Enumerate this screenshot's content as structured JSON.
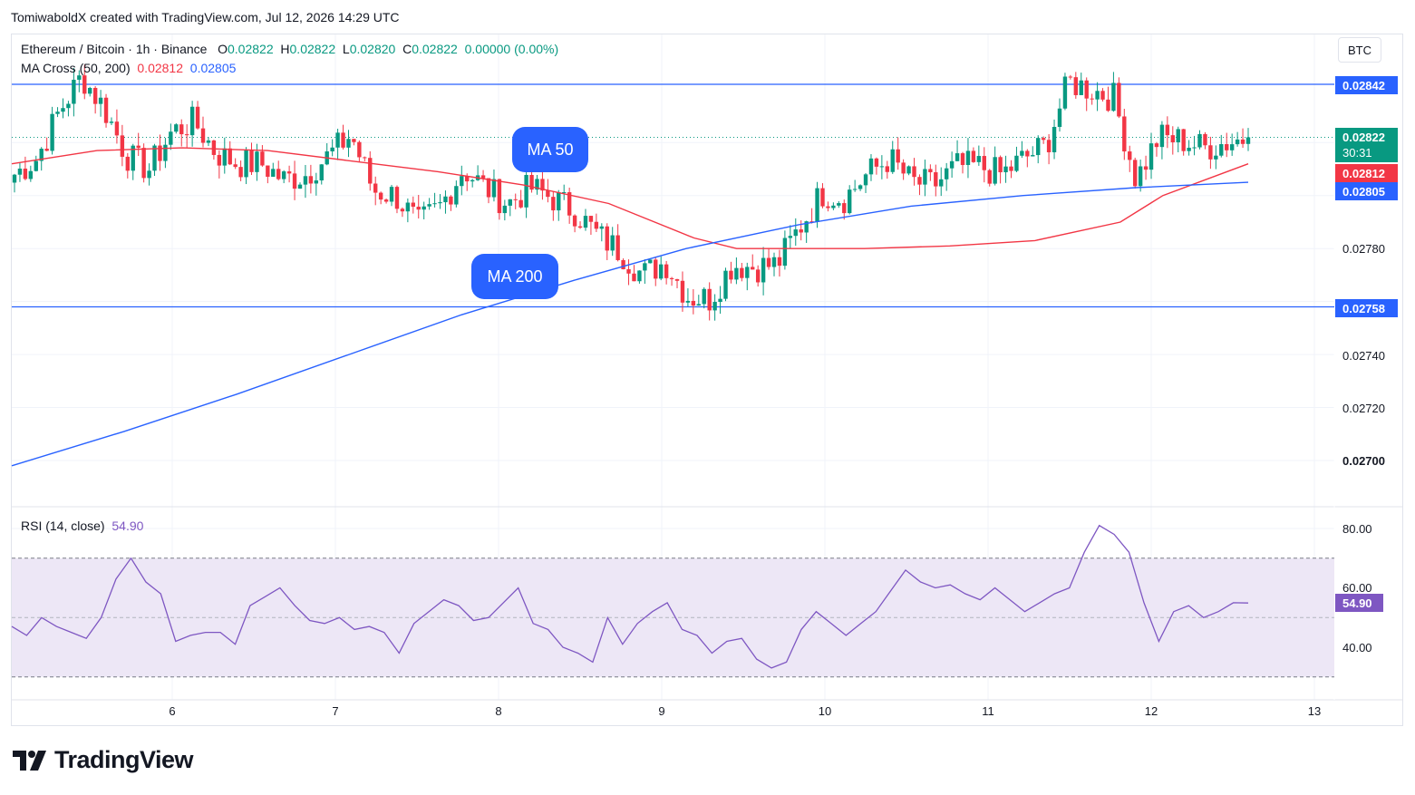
{
  "header": {
    "created_by": "TomiwaboldX created with TradingView.com, Jul 12, 2026 14:29 UTC"
  },
  "symbol": {
    "name": "Ethereum / Bitcoin · 1h · Binance",
    "o_label": "O",
    "o_value": "0.02822",
    "h_label": "H",
    "h_value": "0.02822",
    "l_label": "L",
    "l_value": "0.02820",
    "c_label": "C",
    "c_value": "0.02822",
    "change": "0.00000 (0.00%)"
  },
  "ma_legend": {
    "label": "MA Cross (50, 200)",
    "ma50_value": "0.02812",
    "ma200_value": "0.02805"
  },
  "rsi_legend": {
    "label": "RSI (14, close)",
    "value": "54.90"
  },
  "currency_button": "BTC",
  "annotations": {
    "ma50": "MA 50",
    "ma200": "MA 200"
  },
  "price_tags": {
    "resistance": "0.02842",
    "last": "0.02822",
    "countdown": "30:31",
    "ma50": "0.02812",
    "ma200": "0.02805",
    "support": "0.02758",
    "rsi": "54.90"
  },
  "colors": {
    "up": "#089981",
    "down": "#f23645",
    "ma50": "#f23645",
    "ma200": "#2962ff",
    "rsi": "#7e57c2",
    "rsi_band": "#ede7f6",
    "level_line": "#2962ff"
  },
  "chart_data": {
    "type": "candlestick",
    "price_axis": {
      "ticks": [
        "0.02780",
        "0.02760",
        "0.02740",
        "0.02720",
        "0.02700"
      ],
      "range": [
        0.0269,
        0.0285
      ]
    },
    "time_axis": {
      "ticks": [
        "6",
        "7",
        "8",
        "9",
        "10",
        "11",
        "12",
        "13"
      ]
    },
    "horizontal_levels": [
      0.02842,
      0.02758
    ],
    "last_price": 0.02822,
    "ohlc_anchors": [
      [
        0.02812,
        0.02808
      ],
      [
        0.02813,
        0.02814
      ],
      [
        0.02825,
        0.02832
      ],
      [
        0.02842,
        0.02845
      ],
      [
        0.02832,
        0.02833
      ],
      [
        0.02818,
        0.02815
      ],
      [
        0.02816,
        0.0281
      ],
      [
        0.02822,
        0.02824
      ],
      [
        0.02826,
        0.02828
      ],
      [
        0.02815,
        0.02816
      ],
      [
        0.02811,
        0.02812
      ],
      [
        0.02813,
        0.02812
      ],
      [
        0.0281,
        0.02806
      ],
      [
        0.02806,
        0.02808
      ],
      [
        0.02814,
        0.02815
      ],
      [
        0.02822,
        0.02823
      ],
      [
        0.02804,
        0.02802
      ],
      [
        0.02799,
        0.028
      ],
      [
        0.02788,
        0.02789
      ],
      [
        0.02797,
        0.02796
      ],
      [
        0.02808,
        0.0281
      ],
      [
        0.02802,
        0.02803
      ],
      [
        0.02797,
        0.02797
      ],
      [
        0.02802,
        0.02803
      ],
      [
        0.02799,
        0.02799
      ],
      [
        0.02796,
        0.02794
      ],
      [
        0.02787,
        0.02785
      ],
      [
        0.02781,
        0.02779
      ],
      [
        0.02768,
        0.0277
      ],
      [
        0.02774,
        0.02775
      ],
      [
        0.02762,
        0.02762
      ],
      [
        0.02762,
        0.02761
      ],
      [
        0.02773,
        0.02774
      ],
      [
        0.02776,
        0.02773
      ],
      [
        0.02771,
        0.02774
      ],
      [
        0.02784,
        0.02788
      ],
      [
        0.02797,
        0.02801
      ],
      [
        0.028,
        0.02799
      ],
      [
        0.02806,
        0.02808
      ],
      [
        0.02811,
        0.02814
      ],
      [
        0.02808,
        0.02805
      ],
      [
        0.02805,
        0.02804
      ],
      [
        0.0281,
        0.02811
      ],
      [
        0.02812,
        0.02811
      ],
      [
        0.02807,
        0.02808
      ],
      [
        0.02812,
        0.02814
      ],
      [
        0.02817,
        0.02819
      ],
      [
        0.02838,
        0.02843
      ],
      [
        0.02841,
        0.0284
      ],
      [
        0.02838,
        0.02837
      ],
      [
        0.02804,
        0.02806
      ],
      [
        0.0282,
        0.02822
      ],
      [
        0.02821,
        0.02821
      ],
      [
        0.02818,
        0.02818
      ],
      [
        0.02821,
        0.0282
      ],
      [
        0.02822,
        0.02822
      ]
    ],
    "ma50_anchors": [
      [
        0.0,
        0.02812
      ],
      [
        0.1,
        0.02817
      ],
      [
        0.2,
        0.02818
      ],
      [
        0.3,
        0.02817
      ],
      [
        0.4,
        0.02813
      ],
      [
        0.5,
        0.02809
      ],
      [
        0.6,
        0.02804
      ],
      [
        0.7,
        0.02797
      ],
      [
        0.8,
        0.02784
      ],
      [
        0.85,
        0.0278
      ],
      [
        0.9,
        0.0278
      ],
      [
        1.0,
        0.0278
      ],
      [
        1.1,
        0.02781
      ],
      [
        1.2,
        0.02783
      ],
      [
        1.3,
        0.0279
      ],
      [
        1.35,
        0.028
      ],
      [
        1.4,
        0.02806
      ],
      [
        1.45,
        0.02812
      ]
    ],
    "ma200_anchors": [
      [
        -1.0,
        0.02698
      ],
      [
        -0.8,
        0.02711
      ],
      [
        -0.6,
        0.02725
      ],
      [
        -0.4,
        0.0274
      ],
      [
        -0.2,
        0.02755
      ],
      [
        0.0,
        0.02768
      ],
      [
        0.2,
        0.0278
      ],
      [
        0.4,
        0.02789
      ],
      [
        0.6,
        0.02796
      ],
      [
        0.8,
        0.028
      ],
      [
        1.0,
        0.02803
      ],
      [
        1.2,
        0.02805
      ]
    ],
    "rsi": {
      "axis_ticks": [
        "80.00",
        "60.00",
        "40.00"
      ],
      "band": [
        30,
        70
      ],
      "midline": 50,
      "range": [
        20,
        90
      ],
      "values": [
        47,
        44,
        50,
        47,
        45,
        43,
        50,
        63,
        70,
        62,
        58,
        42,
        44,
        45,
        45,
        41,
        54,
        57,
        60,
        54,
        49,
        48,
        50,
        46,
        47,
        45,
        38,
        48,
        52,
        56,
        54,
        49,
        50,
        55,
        60,
        48,
        46,
        40,
        38,
        35,
        50,
        41,
        48,
        52,
        55,
        46,
        44,
        38,
        42,
        43,
        36,
        33,
        35,
        46,
        52,
        48,
        44,
        48,
        52,
        59,
        66,
        62,
        60,
        61,
        58,
        56,
        60,
        56,
        52,
        55,
        58,
        60,
        72,
        81,
        78,
        72,
        55,
        42,
        52,
        54,
        50,
        52,
        55,
        54.9
      ]
    }
  }
}
